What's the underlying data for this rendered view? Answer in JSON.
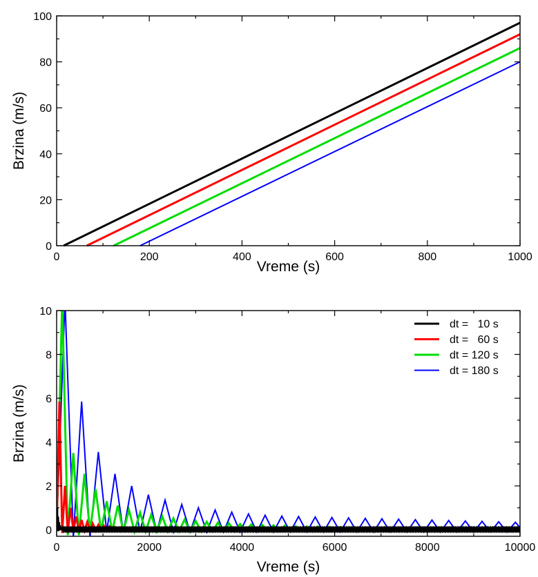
{
  "chart_data": [
    {
      "type": "line",
      "title": "",
      "xlabel": "Vreme (s)",
      "ylabel": "Brzina (m/s)",
      "xlim": [
        0,
        1000
      ],
      "ylim": [
        0,
        100
      ],
      "xticks": [
        0,
        200,
        400,
        600,
        800,
        1000
      ],
      "yticks": [
        0,
        20,
        40,
        60,
        80,
        100
      ],
      "grid": false,
      "legend": "none",
      "series": [
        {
          "color": "#000000",
          "points": [
            [
              15,
              0
            ],
            [
              1000,
              97
            ]
          ]
        },
        {
          "color": "#ff0000",
          "points": [
            [
              65,
              0
            ],
            [
              1000,
              92
            ]
          ]
        },
        {
          "color": "#00dd00",
          "points": [
            [
              123,
              0
            ],
            [
              1000,
              86
            ]
          ]
        },
        {
          "color": "#0000ff",
          "points": [
            [
              180,
              0
            ],
            [
              1000,
              80
            ]
          ]
        }
      ]
    },
    {
      "type": "line",
      "title": "",
      "xlabel": "Vreme (s)",
      "ylabel": "Brzina (m/s)",
      "xlim": [
        0,
        10000
      ],
      "ylim": [
        -0.3,
        10
      ],
      "xticks": [
        0,
        2000,
        4000,
        6000,
        8000,
        10000
      ],
      "yticks": [
        0,
        2,
        4,
        6,
        8,
        10
      ],
      "grid": false,
      "legend": "top-right",
      "series": [
        {
          "name": "dt =   10 s",
          "color": "#000000",
          "dt": 10,
          "peaks": [
            1.0,
            0.6,
            0.35,
            0.2,
            0.12,
            0.08,
            0.05,
            0.04
          ]
        },
        {
          "name": "dt =   60 s",
          "color": "#ff0000",
          "dt": 60,
          "peaks": [
            5.85,
            2.0,
            1.0,
            0.6,
            0.45,
            0.35,
            0.28,
            0.22,
            0.18,
            0.15,
            0.12,
            0.1,
            0.08
          ]
        },
        {
          "name": "dt = 120 s",
          "color": "#00dd00",
          "dt": 120,
          "peaks": [
            10.5,
            3.5,
            2.55,
            1.85,
            1.3,
            1.1,
            0.9,
            0.78,
            0.68,
            0.6,
            0.52,
            0.46,
            0.4,
            0.36,
            0.32,
            0.29,
            0.26,
            0.24,
            0.22,
            0.2,
            0.18,
            0.16,
            0.15,
            0.14,
            0.13,
            0.12,
            0.11,
            0.1
          ]
        },
        {
          "name": "dt = 180 s",
          "color": "#0000ff",
          "dt": 180,
          "peaks": [
            10.5,
            5.85,
            3.55,
            2.55,
            2.0,
            1.6,
            1.35,
            1.15,
            1.0,
            0.9,
            0.8,
            0.72,
            0.66,
            0.62,
            0.6,
            0.58,
            0.56,
            0.54,
            0.52,
            0.5,
            0.48,
            0.46,
            0.44,
            0.42,
            0.4,
            0.38,
            0.36,
            0.34,
            0.32
          ]
        }
      ]
    }
  ]
}
